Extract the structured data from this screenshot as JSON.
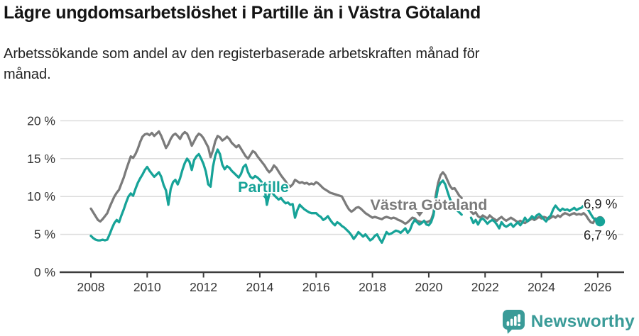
{
  "chart_data": {
    "type": "line",
    "title": "Lägre ungdomsarbetslöshet i Partille än i Västra Götaland",
    "subtitle": {
      "line1": "Arbetssökande som andel av den registerbaserade arbetskraften månad för",
      "line2": "månad."
    },
    "x_start": "2008-01",
    "x_end": "2026-02",
    "frequency": "monthly",
    "ylim": [
      0,
      21
    ],
    "grid": "horizontal",
    "y_ticks": {
      "values": [
        0,
        5,
        10,
        15,
        20
      ],
      "labels": [
        "0 %",
        "5 %",
        "10 %",
        "15 %",
        "20 %"
      ]
    },
    "x_ticks": {
      "values": [
        2008,
        2010,
        2012,
        2014,
        2016,
        2018,
        2020,
        2022,
        2024,
        2026
      ],
      "labels": [
        "2008",
        "2010",
        "2012",
        "2014",
        "2016",
        "2018",
        "2020",
        "2022",
        "2024",
        "2026"
      ]
    },
    "series": [
      {
        "id": "partille",
        "name": "Partille",
        "color": "#17A398",
        "end_label": "6,7 %",
        "values": [
          4.8,
          4.5,
          4.3,
          4.2,
          4.2,
          4.3,
          4.2,
          4.3,
          5.0,
          5.8,
          6.5,
          6.9,
          6.6,
          7.5,
          8.3,
          9.2,
          10.0,
          10.4,
          10.1,
          11.0,
          11.8,
          12.4,
          12.9,
          13.5,
          13.9,
          13.4,
          13.0,
          12.6,
          12.9,
          13.2,
          12.6,
          11.5,
          10.8,
          8.9,
          11.0,
          11.9,
          12.2,
          11.6,
          12.4,
          13.5,
          14.4,
          15.0,
          14.6,
          13.5,
          14.8,
          15.3,
          15.6,
          15.0,
          14.3,
          13.3,
          11.6,
          11.3,
          13.9,
          15.4,
          16.2,
          15.6,
          14.2,
          13.6,
          14.0,
          13.8,
          13.4,
          13.1,
          12.8,
          12.5,
          13.0,
          13.9,
          14.2,
          13.2,
          12.6,
          12.4,
          12.7,
          12.5,
          12.2,
          11.8,
          11.2,
          8.9,
          10.3,
          10.7,
          10.2,
          9.9,
          9.6,
          9.8,
          9.4,
          9.1,
          9.2,
          8.9,
          9.0,
          7.2,
          8.2,
          8.9,
          8.6,
          8.3,
          8.1,
          7.9,
          7.8,
          7.8,
          7.8,
          7.5,
          7.3,
          6.9,
          7.1,
          7.4,
          6.9,
          6.5,
          6.2,
          6.6,
          6.4,
          6.1,
          5.9,
          5.6,
          5.3,
          4.9,
          4.4,
          4.8,
          5.3,
          5.0,
          4.7,
          5.0,
          4.6,
          4.2,
          4.4,
          4.8,
          5.0,
          4.4,
          3.9,
          4.6,
          5.3,
          5.0,
          5.1,
          5.3,
          5.5,
          5.4,
          5.2,
          5.5,
          5.8,
          5.2,
          5.6,
          6.4,
          6.9,
          6.6,
          6.3,
          6.5,
          6.8,
          6.3,
          6.2,
          6.6,
          7.5,
          9.5,
          11.2,
          11.8,
          12.1,
          11.6,
          10.6,
          9.7,
          9.0,
          8.6,
          8.2,
          7.9,
          7.6,
          null,
          null,
          null,
          7.2,
          6.5,
          6.9,
          6.3,
          6.9,
          7.1,
          6.8,
          6.4,
          6.7,
          6.9,
          6.7,
          6.3,
          5.8,
          6.6,
          6.2,
          6.0,
          6.2,
          6.4,
          6.0,
          6.3,
          6.6,
          6.2,
          6.6,
          7.2,
          6.7,
          7.0,
          7.4,
          7.1,
          7.5,
          7.7,
          7.4,
          7.0,
          6.7,
          7.2,
          7.5,
          8.3,
          8.8,
          8.4,
          8.1,
          8.4,
          8.2,
          8.3,
          8.1,
          8.3,
          8.5,
          8.2,
          8.4,
          8.5,
          8.8,
          8.6,
          8.2,
          7.7,
          7.2,
          6.9,
          6.8,
          6.7
        ]
      },
      {
        "id": "vastra-gotaland",
        "name": "Västra Götaland",
        "color": "#7B7B7B",
        "end_label": "6,9 %",
        "values": [
          8.4,
          7.9,
          7.4,
          6.9,
          6.7,
          7.0,
          7.4,
          7.8,
          8.6,
          9.3,
          10.0,
          10.5,
          10.9,
          11.7,
          12.5,
          13.5,
          14.4,
          15.3,
          15.1,
          15.6,
          16.3,
          17.2,
          17.9,
          18.2,
          18.3,
          18.1,
          18.4,
          18.0,
          18.3,
          18.6,
          18.0,
          17.2,
          16.4,
          16.9,
          17.6,
          18.1,
          18.3,
          18.0,
          17.6,
          18.2,
          18.5,
          18.3,
          17.6,
          16.7,
          17.3,
          17.9,
          18.3,
          18.1,
          17.7,
          17.1,
          16.5,
          15.2,
          16.1,
          17.3,
          18.0,
          17.8,
          17.4,
          17.6,
          17.9,
          17.6,
          17.1,
          16.8,
          16.5,
          16.8,
          16.3,
          15.8,
          15.3,
          15.0,
          15.5,
          16.0,
          15.8,
          15.3,
          14.9,
          14.5,
          14.1,
          13.6,
          13.2,
          13.5,
          14.1,
          13.8,
          13.3,
          12.8,
          12.4,
          12.0,
          11.5,
          11.3,
          11.6,
          12.2,
          12.0,
          11.8,
          11.9,
          11.7,
          11.8,
          11.6,
          11.7,
          11.6,
          11.9,
          11.7,
          11.4,
          11.1,
          10.9,
          10.7,
          10.5,
          10.4,
          10.3,
          10.2,
          10.1,
          10.0,
          9.4,
          8.8,
          8.3,
          8.0,
          8.2,
          8.5,
          8.6,
          8.4,
          8.1,
          7.8,
          7.6,
          7.4,
          7.2,
          7.3,
          7.2,
          7.1,
          7.0,
          7.2,
          7.3,
          7.2,
          7.1,
          7.2,
          7.1,
          6.9,
          6.8,
          6.6,
          6.4,
          6.6,
          6.9,
          7.2,
          7.1,
          6.8,
          6.7,
          6.6,
          6.7,
          6.6,
          6.7,
          6.9,
          7.8,
          10.2,
          11.8,
          12.8,
          13.2,
          12.8,
          12.1,
          11.4,
          11.0,
          11.1,
          10.6,
          10.1,
          9.8,
          null,
          null,
          null,
          8.0,
          7.7,
          7.9,
          7.4,
          7.2,
          7.5,
          7.3,
          7.1,
          7.5,
          7.2,
          7.0,
          6.8,
          7.1,
          7.3,
          7.0,
          6.8,
          7.0,
          7.2,
          7.0,
          6.8,
          6.6,
          6.8,
          6.6,
          6.5,
          6.7,
          6.9,
          7.1,
          6.9,
          7.1,
          7.3,
          7.1,
          7.3,
          7.2,
          7.0,
          7.2,
          7.4,
          7.2,
          7.5,
          7.3,
          7.6,
          7.8,
          7.7,
          7.5,
          7.7,
          7.8,
          7.6,
          7.7,
          7.6,
          7.8,
          7.5,
          7.0,
          6.6,
          6.5,
          7.1,
          7.0,
          6.9
        ]
      }
    ],
    "axis_colors": {
      "grid": "#dcdcdc",
      "axis": "#3c3c3c",
      "tick_text": "#333333"
    }
  },
  "footer": {
    "brand": "Newsworthy",
    "brand_color": "#3A9B98"
  }
}
